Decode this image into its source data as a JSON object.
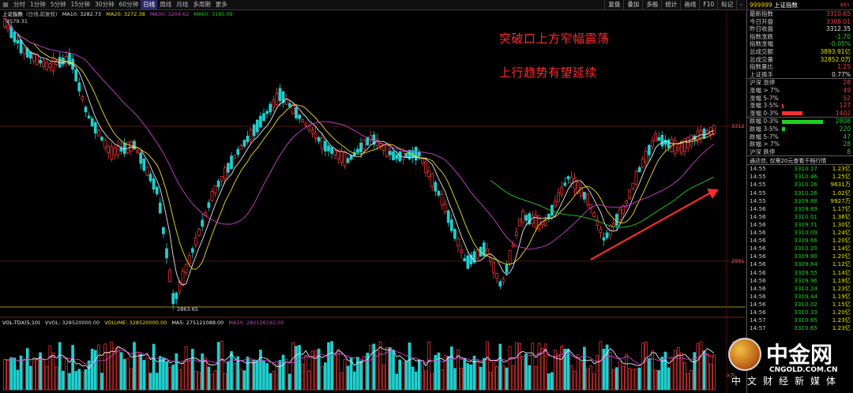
{
  "toolbar": {
    "periods": [
      "分时",
      "1分钟",
      "5分钟",
      "15分钟",
      "30分钟",
      "60分钟",
      "日线",
      "周线",
      "月线",
      "多周期",
      "更多"
    ],
    "active_period": "日线",
    "right_tools": [
      "复盘",
      "叠加",
      "多股",
      "统计",
      "画线",
      "F10",
      "标记",
      "-"
    ]
  },
  "main_legend": {
    "name": "上证指数",
    "mode": "(日线,前复权)",
    "ma": [
      {
        "label": "MA10: 3282.73",
        "color": "#e8e8e8"
      },
      {
        "label": "MA20: 3272.38",
        "color": "#f0e020"
      },
      {
        "label": "MA30: 3204.62",
        "color": "#d040d0"
      },
      {
        "label": "MA60: 3185.09",
        "color": "#20d020"
      }
    ]
  },
  "price_labels": {
    "high": "3579.31",
    "low": "2863.65",
    "axis_upper": "3312",
    "axis_mid": "2991"
  },
  "annotations": {
    "line1": "突破口上方窄幅震荡",
    "line2": "上行趋势有望延续"
  },
  "vol_legend": {
    "name": "VOL-TDX(5,10)",
    "vvol": "VVOL: 328520000.00",
    "volume": "VOLUME: 328520000.00",
    "ma5": "MA5: 275121088.00",
    "ma10": "MA10: 282126192.00"
  },
  "vol_axis": {
    "label": "45万",
    "unit": "X万"
  },
  "panel": {
    "code": "999999",
    "name": "上证指数",
    "badge": "$61",
    "quotes": [
      {
        "label": "最新指数",
        "value": "3310.65",
        "color": "red"
      },
      {
        "label": "今日开盘",
        "value": "3308.01",
        "color": "red"
      },
      {
        "label": "昨日收盘",
        "value": "3312.35",
        "color": "white"
      },
      {
        "label": "指数涨跌",
        "value": "-1.70",
        "color": "green"
      },
      {
        "label": "指数涨幅",
        "value": "-0.05%",
        "color": "green"
      },
      {
        "label": "总成交额",
        "value": "3893.91亿",
        "color": "yellow"
      },
      {
        "label": "总成交量",
        "value": "32852.0万",
        "color": "yellow"
      },
      {
        "label": "指数量比",
        "value": "1.25",
        "color": "red"
      },
      {
        "label": "上证换手",
        "value": "0.77%",
        "color": "white"
      }
    ],
    "breadth_up": [
      {
        "label": "沪深 涨停",
        "value": "28",
        "fill": 0
      },
      {
        "label": "涨幅 > 7%",
        "value": "49",
        "fill": 0
      },
      {
        "label": "涨幅 5-7%",
        "value": "52",
        "fill": 0
      },
      {
        "label": "涨幅 3-5%",
        "value": "127",
        "fill": 0.04
      },
      {
        "label": "涨幅 0-3%",
        "value": "1402",
        "fill": 0.5
      }
    ],
    "breadth_down": [
      {
        "label": "跌幅 0-3%",
        "value": "2808",
        "fill": 1.0
      },
      {
        "label": "跌幅 3-5%",
        "value": "220",
        "fill": 0.08
      },
      {
        "label": "跌幅 5-7%",
        "value": "47",
        "fill": 0
      },
      {
        "label": "跌幅 > 7%",
        "value": "28",
        "fill": 0
      },
      {
        "label": "沪深 跌停",
        "value": "8",
        "fill": 0
      }
    ],
    "notice": "通达信, 仅需20元查看千档行情",
    "ticks": [
      {
        "time": "14:55",
        "price": "3310.17",
        "vol": "1.23亿"
      },
      {
        "time": "14:55",
        "price": "3310.46",
        "vol": "1.25亿"
      },
      {
        "time": "14:55",
        "price": "3310.26",
        "vol": "9631万"
      },
      {
        "time": "14:55",
        "price": "3310.26",
        "vol": "1.02亿"
      },
      {
        "time": "14:55",
        "price": "3309.88",
        "vol": "9927万"
      },
      {
        "time": "14:56",
        "price": "3309.89",
        "vol": "1.17亿"
      },
      {
        "time": "14:56",
        "price": "3310.01",
        "vol": "1.36亿"
      },
      {
        "time": "14:56",
        "price": "3309.71",
        "vol": "1.30亿"
      },
      {
        "time": "14:56",
        "price": "3310.09",
        "vol": "1.24亿"
      },
      {
        "time": "14:56",
        "price": "3309.66",
        "vol": "1.20亿"
      },
      {
        "time": "14:56",
        "price": "3310.20",
        "vol": "1.14亿"
      },
      {
        "time": "14:56",
        "price": "3309.90",
        "vol": "1.20亿"
      },
      {
        "time": "14:56",
        "price": "3309.84",
        "vol": "1.12亿"
      },
      {
        "time": "14:56",
        "price": "3309.55",
        "vol": "1.14亿"
      },
      {
        "time": "14:56",
        "price": "3309.96",
        "vol": "1.19亿"
      },
      {
        "time": "14:56",
        "price": "3310.24",
        "vol": "1.23亿"
      },
      {
        "time": "14:56",
        "price": "3309.44",
        "vol": "1.19亿"
      },
      {
        "time": "14:56",
        "price": "3310.02",
        "vol": "1.15亿"
      },
      {
        "time": "14:56",
        "price": "3310.33",
        "vol": "1.20亿"
      },
      {
        "time": "14:57",
        "price": "3310.65",
        "vol": "1.23亿"
      },
      {
        "time": "14:57",
        "price": "3310.65",
        "vol": "1.23亿"
      }
    ]
  },
  "watermark": {
    "name": "中金网",
    "url": "CNGOLD.COM.CN",
    "sub": "中文财经新媒体"
  },
  "colors": {
    "up": "#ff3b3b",
    "down": "#20d0d0",
    "ma10": "#e8e8e8",
    "ma20": "#f0e020",
    "ma30": "#d040d0",
    "ma60": "#20d020",
    "trend_arrow": "#ff2a2a"
  }
}
